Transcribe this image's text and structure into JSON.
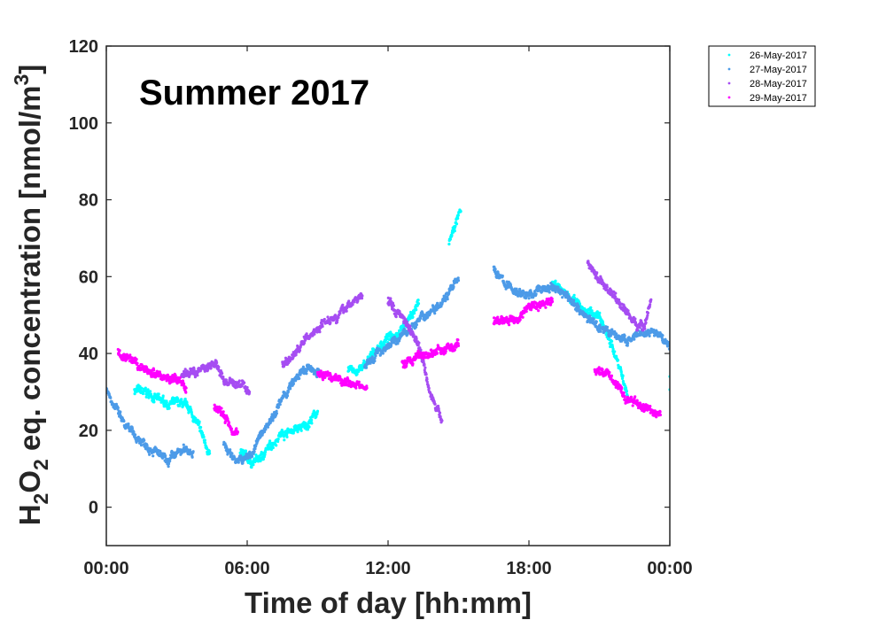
{
  "chart_data": {
    "type": "scatter",
    "title": "Summer 2017",
    "xlabel": "Time of day [hh:mm]",
    "ylabel": {
      "p1": "H",
      "s1": "2",
      "p2": "O",
      "s2": "2",
      "p3": " eq. concentration [nmol/m",
      "sup": "3",
      "p4": "]"
    },
    "xlim": [
      0,
      24
    ],
    "ylim": [
      -10,
      120
    ],
    "xticks": [
      0,
      6,
      12,
      18,
      24
    ],
    "xtick_labels": [
      "00:00",
      "06:00",
      "12:00",
      "18:00",
      "00:00"
    ],
    "yticks": [
      0,
      20,
      40,
      60,
      80,
      100,
      120
    ],
    "ytick_labels": [
      "0",
      "20",
      "40",
      "60",
      "80",
      "100",
      "120"
    ],
    "grid": false,
    "legend_position": "outside-top-right",
    "series": [
      {
        "name": "26-May-2017",
        "color": "#00ffff",
        "segments": [
          [
            [
              1.2,
              30.5
            ],
            [
              1.8,
              29.5
            ],
            [
              2.2,
              28
            ],
            [
              2.6,
              27
            ],
            [
              3.2,
              27
            ],
            [
              3.6,
              25
            ],
            [
              4.0,
              20
            ],
            [
              4.4,
              14
            ]
          ],
          [
            [
              5.7,
              14
            ],
            [
              6.2,
              11.5
            ],
            [
              6.6,
              13
            ],
            [
              7.0,
              16
            ],
            [
              7.4,
              19
            ],
            [
              7.9,
              20
            ],
            [
              8.5,
              21
            ],
            [
              9.0,
              25
            ]
          ],
          [
            [
              10.3,
              35
            ],
            [
              10.9,
              36
            ],
            [
              11.5,
              41
            ],
            [
              12.0,
              44
            ],
            [
              12.5,
              46
            ],
            [
              13.0,
              50
            ],
            [
              13.3,
              53
            ]
          ],
          [
            [
              14.6,
              69
            ],
            [
              14.9,
              74
            ],
            [
              15.1,
              77
            ]
          ],
          [
            [
              19.0,
              58
            ],
            [
              19.5,
              56
            ],
            [
              20.0,
              53
            ],
            [
              20.4,
              51
            ],
            [
              21.0,
              50
            ],
            [
              21.3,
              45
            ],
            [
              21.6,
              41
            ],
            [
              21.9,
              36
            ],
            [
              22.2,
              29
            ]
          ],
          [
            [
              24.0,
              31
            ],
            [
              24.0,
              34
            ]
          ]
        ]
      },
      {
        "name": "27-May-2017",
        "color": "#4d9be8",
        "segments": [
          [
            [
              0.0,
              31
            ],
            [
              0.3,
              27
            ],
            [
              0.8,
              21
            ],
            [
              1.3,
              18
            ],
            [
              1.8,
              16
            ],
            [
              2.2,
              14
            ],
            [
              2.6,
              11.5
            ],
            [
              3.0,
              14
            ],
            [
              3.4,
              15
            ],
            [
              3.7,
              14.5
            ]
          ],
          [
            [
              5.0,
              16
            ],
            [
              5.4,
              13
            ],
            [
              5.8,
              12
            ],
            [
              6.2,
              14
            ],
            [
              6.6,
              19
            ],
            [
              7.2,
              25
            ],
            [
              7.8,
              31
            ],
            [
              8.3,
              35
            ],
            [
              8.7,
              36
            ],
            [
              9.1,
              35
            ]
          ],
          [
            [
              11.0,
              36
            ],
            [
              11.5,
              40
            ],
            [
              12.0,
              42
            ],
            [
              12.5,
              44
            ],
            [
              13.2,
              48
            ],
            [
              13.8,
              51
            ],
            [
              14.3,
              54
            ],
            [
              14.7,
              57
            ],
            [
              15.0,
              59
            ]
          ],
          [
            [
              16.5,
              62
            ],
            [
              17.0,
              58
            ],
            [
              17.5,
              56
            ],
            [
              18.0,
              55
            ],
            [
              18.6,
              57
            ],
            [
              19.2,
              57
            ],
            [
              19.6,
              55
            ],
            [
              20.1,
              52
            ],
            [
              20.5,
              49
            ],
            [
              21.0,
              47
            ],
            [
              21.6,
              45
            ],
            [
              22.2,
              43
            ],
            [
              22.8,
              45
            ],
            [
              23.4,
              45.5
            ],
            [
              24.0,
              42
            ]
          ]
        ]
      },
      {
        "name": "28-May-2017",
        "color": "#a64df2",
        "segments": [
          [
            [
              3.2,
              34
            ],
            [
              3.6,
              35
            ],
            [
              4.0,
              36
            ],
            [
              4.4,
              37
            ],
            [
              4.7,
              37
            ],
            [
              5.0,
              33
            ],
            [
              5.4,
              32
            ],
            [
              5.8,
              32
            ],
            [
              6.1,
              30
            ]
          ],
          [
            [
              7.5,
              37
            ],
            [
              7.9,
              39
            ],
            [
              8.4,
              43
            ],
            [
              8.9,
              46
            ],
            [
              9.4,
              49
            ],
            [
              9.9,
              50
            ],
            [
              10.4,
              53
            ],
            [
              10.9,
              55
            ]
          ],
          [
            [
              12.0,
              54
            ],
            [
              12.3,
              51
            ],
            [
              12.6,
              50
            ],
            [
              12.9,
              47
            ],
            [
              13.2,
              44
            ],
            [
              13.5,
              38
            ],
            [
              13.8,
              30
            ],
            [
              14.1,
              25
            ],
            [
              14.3,
              22.5
            ]
          ],
          [
            [
              20.5,
              64
            ],
            [
              21.0,
              59
            ],
            [
              21.5,
              56
            ],
            [
              22.0,
              52
            ],
            [
              22.5,
              48
            ],
            [
              22.9,
              47
            ],
            [
              23.2,
              54
            ]
          ]
        ]
      },
      {
        "name": "29-May-2017",
        "color": "#ff00ff",
        "segments": [
          [
            [
              0.5,
              40
            ],
            [
              1.0,
              38
            ],
            [
              1.5,
              36
            ],
            [
              2.0,
              35
            ],
            [
              2.5,
              34
            ],
            [
              3.0,
              33
            ],
            [
              3.4,
              31
            ]
          ],
          [
            [
              4.6,
              26
            ],
            [
              5.0,
              24
            ],
            [
              5.3,
              21
            ],
            [
              5.6,
              19.5
            ]
          ],
          [
            [
              9.0,
              35
            ],
            [
              9.6,
              34
            ],
            [
              10.2,
              33
            ],
            [
              10.8,
              31.5
            ],
            [
              11.1,
              31
            ]
          ],
          [
            [
              12.6,
              37
            ],
            [
              13.2,
              39
            ],
            [
              13.8,
              40
            ],
            [
              14.4,
              41
            ],
            [
              15.0,
              42
            ]
          ],
          [
            [
              16.5,
              48
            ],
            [
              17.0,
              49
            ],
            [
              17.5,
              49
            ],
            [
              18.0,
              52
            ],
            [
              18.5,
              53
            ],
            [
              19.0,
              53.5
            ]
          ],
          [
            [
              20.8,
              36
            ],
            [
              21.3,
              35
            ],
            [
              21.8,
              32
            ],
            [
              22.1,
              28
            ],
            [
              22.6,
              27
            ],
            [
              23.2,
              25
            ],
            [
              23.6,
              24
            ]
          ]
        ]
      }
    ]
  }
}
